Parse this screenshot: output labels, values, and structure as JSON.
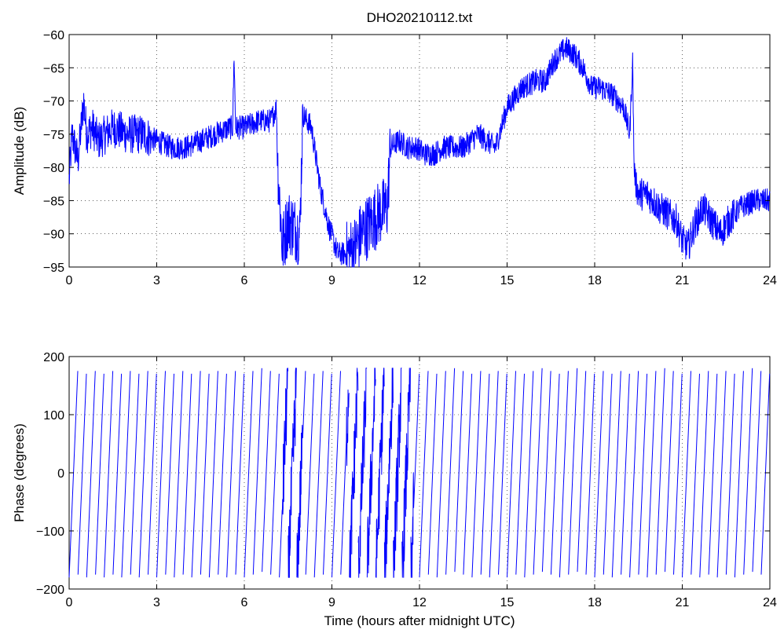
{
  "colors": {
    "series": "#0000ff",
    "axes": "#000000",
    "background": "#ffffff"
  },
  "chart_data": [
    {
      "type": "line",
      "title": "DHO20210112.txt",
      "xlabel": "",
      "ylabel": "Amplitude (dB)",
      "xlim": [
        0,
        24
      ],
      "ylim": [
        -95,
        -60
      ],
      "xticks": [
        0,
        3,
        6,
        9,
        12,
        15,
        18,
        21,
        24
      ],
      "yticks": [
        -95,
        -90,
        -85,
        -80,
        -75,
        -70,
        -65,
        -60
      ],
      "grid": true,
      "noise": 1.8,
      "x": [
        0,
        0.1,
        0.3,
        0.5,
        0.6,
        0.8,
        1.0,
        1.5,
        2.0,
        2.5,
        3.0,
        3.5,
        3.8,
        4.0,
        4.5,
        5.0,
        5.5,
        5.6,
        5.65,
        5.7,
        6.0,
        6.5,
        6.9,
        7.1,
        7.15,
        7.3,
        7.5,
        7.7,
        7.9,
        8.0,
        8.3,
        8.6,
        8.9,
        9.2,
        9.5,
        9.8,
        10.0,
        10.2,
        10.4,
        10.6,
        10.9,
        11.0,
        11.3,
        11.6,
        11.9,
        12.2,
        12.5,
        12.8,
        13.0,
        13.5,
        14.0,
        14.3,
        14.6,
        15.0,
        15.5,
        16.0,
        16.3,
        16.6,
        17.0,
        17.3,
        17.6,
        17.9,
        18.2,
        18.6,
        19.0,
        19.2,
        19.3,
        19.35,
        19.4,
        19.5,
        19.8,
        20.0,
        20.2,
        20.5,
        20.8,
        21.0,
        21.2,
        21.4,
        21.7,
        22.0,
        22.3,
        22.6,
        23.0,
        23.5,
        24.0
      ],
      "y": [
        -82,
        -75,
        -79,
        -70,
        -75,
        -74,
        -76,
        -74,
        -75,
        -75,
        -76,
        -77,
        -77,
        -77,
        -76,
        -75,
        -74,
        -74,
        -63,
        -74,
        -74,
        -73,
        -73,
        -71,
        -80,
        -92,
        -88,
        -89,
        -90,
        -72,
        -74,
        -83,
        -89,
        -93,
        -93,
        -92,
        -90,
        -89,
        -88,
        -87,
        -86,
        -77,
        -76,
        -77,
        -77,
        -78,
        -78,
        -77,
        -77,
        -77,
        -75,
        -76,
        -77,
        -71,
        -68,
        -67,
        -67,
        -64,
        -62,
        -63,
        -65,
        -68,
        -68,
        -69,
        -71,
        -75,
        -64,
        -80,
        -82,
        -84,
        -84,
        -85,
        -86,
        -87,
        -88,
        -91,
        -92,
        -89,
        -86,
        -88,
        -90,
        -88,
        -86,
        -85,
        -85
      ]
    },
    {
      "type": "line",
      "title": "",
      "xlabel": "Time (hours after midnight UTC)",
      "ylabel": "Phase (degrees)",
      "xlim": [
        0,
        24
      ],
      "ylim": [
        -200,
        200
      ],
      "xticks": [
        0,
        3,
        6,
        9,
        12,
        15,
        18,
        21,
        24
      ],
      "yticks": [
        -200,
        -100,
        0,
        100,
        200
      ],
      "grid": true,
      "wrap_period_hours": 0.3,
      "wrap_range": [
        -180,
        180
      ]
    }
  ]
}
